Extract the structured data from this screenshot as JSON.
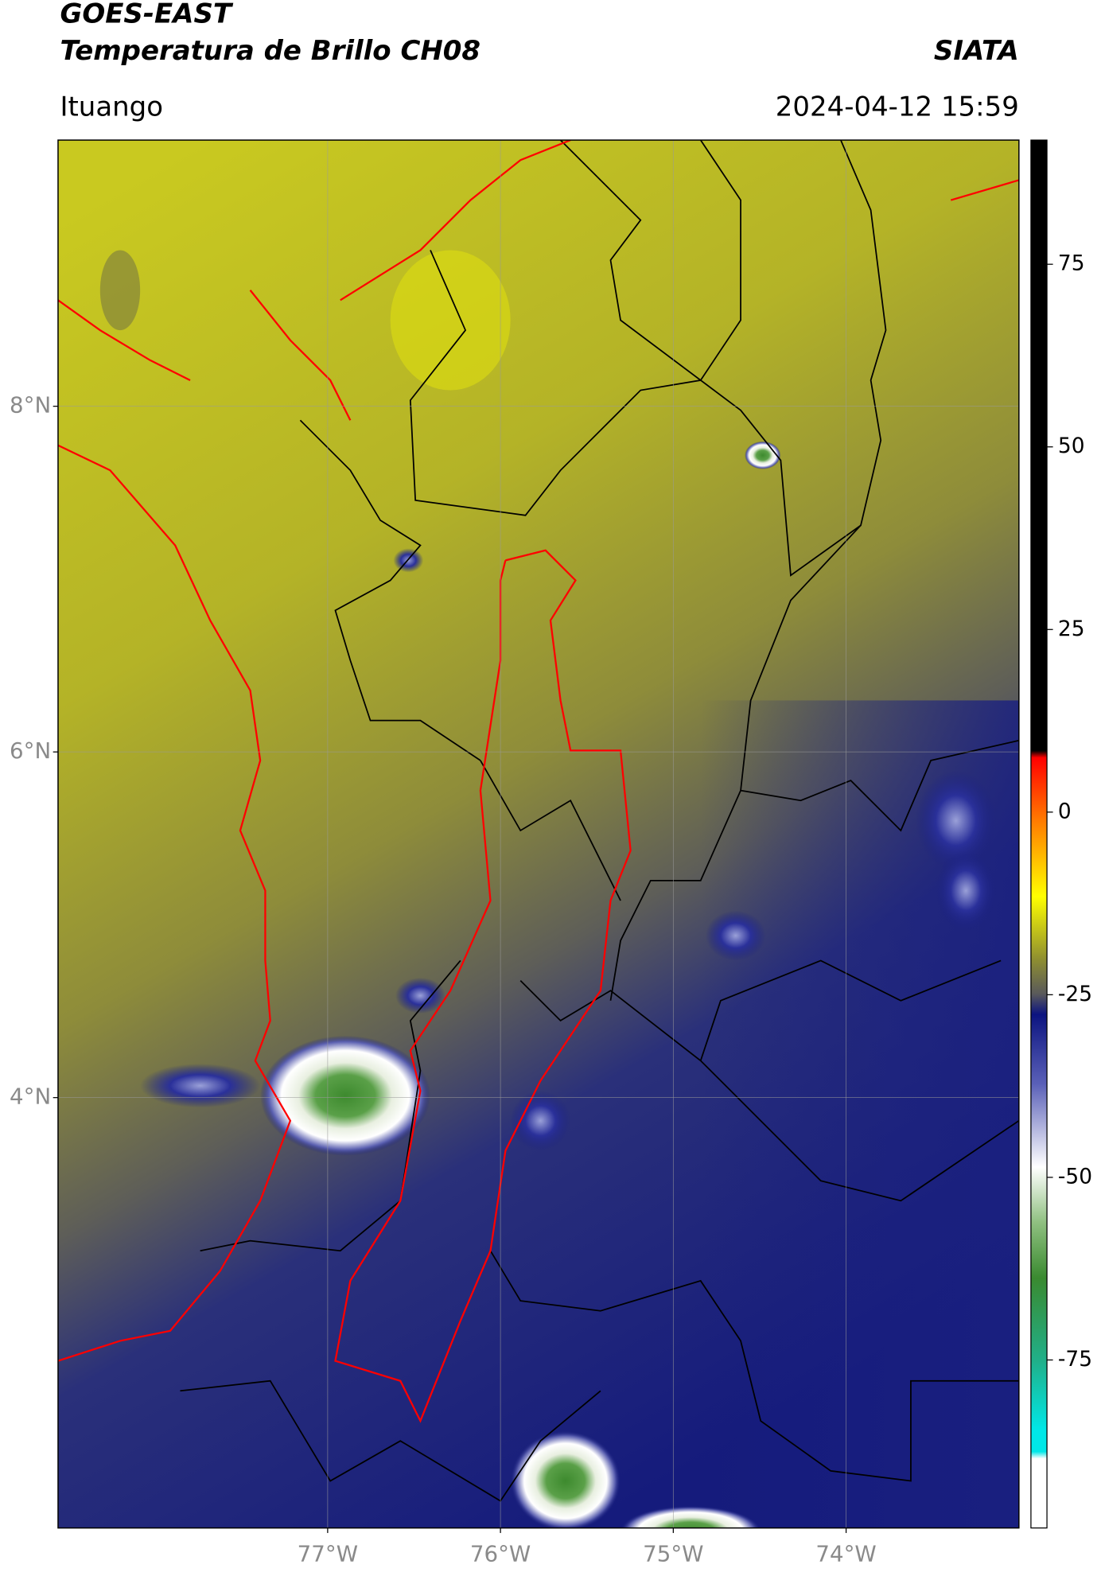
{
  "header": {
    "title": "GOES-EAST",
    "subtitle": "Temperatura de Brillo CH08",
    "source": "SIATA",
    "location": "Ituango",
    "timestamp": "2024-04-12 15:59"
  },
  "map": {
    "lon_range": [
      -78.56,
      -73.0
    ],
    "lat_range": [
      1.51,
      9.54
    ],
    "lat_ticks": [
      {
        "value": 8,
        "label": "8°N"
      },
      {
        "value": 6,
        "label": "6°N"
      },
      {
        "value": 4,
        "label": "4°N"
      }
    ],
    "lon_ticks": [
      {
        "value": -77,
        "label": "77°W"
      },
      {
        "value": -76,
        "label": "76°W"
      },
      {
        "value": -75,
        "label": "75°W"
      },
      {
        "value": -74,
        "label": "74°W"
      }
    ]
  },
  "colorbar": {
    "range": [
      -98,
      92
    ],
    "ticks": [
      75,
      50,
      25,
      0,
      -25,
      -50,
      -75
    ]
  }
}
